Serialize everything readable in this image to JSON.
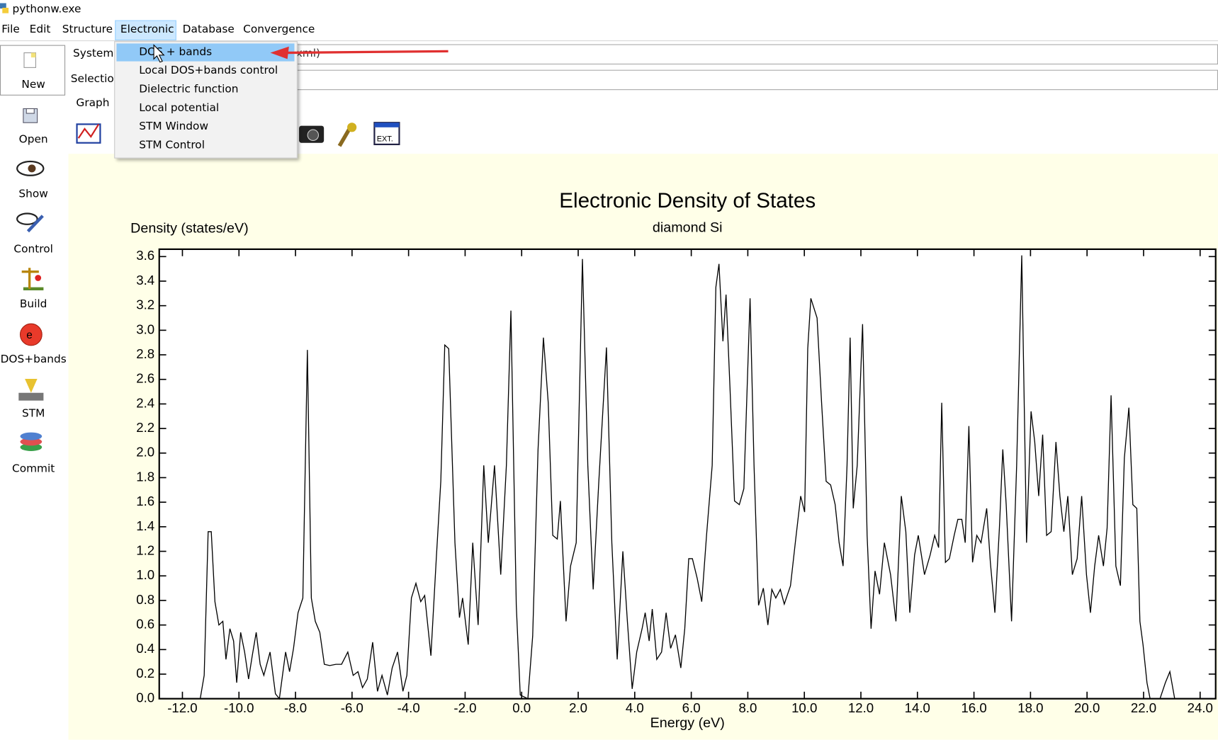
{
  "window": {
    "title": "pythonw.exe"
  },
  "menu": [
    "File",
    "Edit",
    "Structure",
    "Electronic",
    "Database",
    "Convergence"
  ],
  "dropdown": [
    "DOS + bands",
    "Local DOS+bands control",
    "Dielectric function",
    "Local potential",
    "STM Window",
    "STM Control"
  ],
  "sidebar": [
    "New",
    "Open",
    "Show",
    "Control",
    "Build",
    "DOS+bands",
    "STM",
    "Commit"
  ],
  "form": {
    "system_label": "System:",
    "system_value": "xml)",
    "selection_label": "Selection",
    "tab": "Graph"
  },
  "chart_data": {
    "type": "line",
    "title": "Electronic Density of States",
    "subtitle": "diamond Si",
    "y_label": "Density (states/eV)",
    "x_label": "Energy (eV)",
    "color": "#000000",
    "xlim": [
      -12.82,
      24.55
    ],
    "ylim": [
      0,
      3.66
    ],
    "xticks": [
      {
        "value": -12,
        "label": "-12.0"
      },
      {
        "value": -10,
        "label": "-10.0"
      },
      {
        "value": -8,
        "label": "-8.0"
      },
      {
        "value": -6,
        "label": "-6.0"
      },
      {
        "value": -4,
        "label": "-4.0"
      },
      {
        "value": -2,
        "label": "-2.0"
      },
      {
        "value": 0,
        "label": "0.0"
      },
      {
        "value": 2,
        "label": "2.0"
      },
      {
        "value": 4,
        "label": "4.0"
      },
      {
        "value": 6,
        "label": "6.0"
      },
      {
        "value": 8,
        "label": "8.0"
      },
      {
        "value": 10,
        "label": "10.0"
      },
      {
        "value": 12,
        "label": "12.0"
      },
      {
        "value": 14,
        "label": "14.0"
      },
      {
        "value": 16,
        "label": "16.0"
      },
      {
        "value": 18,
        "label": "18.0"
      },
      {
        "value": 20,
        "label": "20.0"
      },
      {
        "value": 22,
        "label": "22.0"
      },
      {
        "value": 24,
        "label": "24.0"
      }
    ],
    "yticks": [
      {
        "value": 0,
        "label": "0.0"
      },
      0.2,
      0.4,
      0.6,
      0.8,
      {
        "value": 1,
        "label": "1.0"
      },
      1.2,
      1.4,
      1.6,
      1.8,
      {
        "value": 2,
        "label": "2.0"
      },
      2.2,
      2.4,
      2.6,
      2.8,
      {
        "value": 3,
        "label": "3.0"
      },
      3.2,
      3.4,
      3.6
    ],
    "x": [
      -11.37,
      -11.23,
      -11.09,
      -10.98,
      -10.85,
      -10.71,
      -10.57,
      -10.46,
      -10.32,
      -10.19,
      -10.08,
      -9.94,
      -9.8,
      -9.66,
      -9.53,
      -9.39,
      -9.25,
      -9.12,
      -8.9,
      -8.71,
      -8.57,
      -8.35,
      -8.21,
      -8.07,
      -7.91,
      -7.74,
      -7.58,
      -7.44,
      -7.3,
      -7.14,
      -6.98,
      -6.79,
      -6.57,
      -6.37,
      -6.15,
      -5.96,
      -5.79,
      -5.63,
      -5.46,
      -5.27,
      -5.1,
      -4.94,
      -4.75,
      -4.58,
      -4.39,
      -4.2,
      -4.06,
      -3.9,
      -3.74,
      -3.57,
      -3.43,
      -3.21,
      -3.02,
      -2.86,
      -2.72,
      -2.58,
      -2.36,
      -2.2,
      -2.09,
      -1.89,
      -1.73,
      -1.54,
      -1.34,
      -1.18,
      -0.96,
      -0.74,
      -0.54,
      -0.38,
      -0.19,
      -0.05,
      0.22,
      0.39,
      0.58,
      0.77,
      0.94,
      1.1,
      1.26,
      1.37,
      1.57,
      1.73,
      1.93,
      2.15,
      2.34,
      2.53,
      2.73,
      3.0,
      3.19,
      3.38,
      3.58,
      3.74,
      3.91,
      4.07,
      4.26,
      4.37,
      4.51,
      4.62,
      4.78,
      4.95,
      5.11,
      5.27,
      5.44,
      5.63,
      5.77,
      5.91,
      6.04,
      6.21,
      6.37,
      6.54,
      6.74,
      6.87,
      6.98,
      7.12,
      7.23,
      7.37,
      7.53,
      7.7,
      7.86,
      8.08,
      8.22,
      8.38,
      8.55,
      8.71,
      8.85,
      8.99,
      9.15,
      9.29,
      9.51,
      9.68,
      9.87,
      10.01,
      10.12,
      10.23,
      10.45,
      10.61,
      10.77,
      10.93,
      11.09,
      11.23,
      11.37,
      11.51,
      11.62,
      11.73,
      11.87,
      12.06,
      12.22,
      12.36,
      12.5,
      12.66,
      12.83,
      13.05,
      13.24,
      13.43,
      13.59,
      13.73,
      13.9,
      14.03,
      14.25,
      14.45,
      14.61,
      14.75,
      14.86,
      14.99,
      15.13,
      15.3,
      15.43,
      15.57,
      15.69,
      15.82,
      15.95,
      16.1,
      16.25,
      16.45,
      16.58,
      16.74,
      16.9,
      17.02,
      17.14,
      17.33,
      17.51,
      17.69,
      17.86,
      18.02,
      18.15,
      18.29,
      18.43,
      18.57,
      18.73,
      18.9,
      19.04,
      19.18,
      19.32,
      19.48,
      19.65,
      19.81,
      19.98,
      20.12,
      20.27,
      20.41,
      20.58,
      20.71,
      20.85,
      21.02,
      21.18,
      21.32,
      21.48,
      21.62,
      21.76,
      21.87,
      21.98,
      22.12,
      22.23,
      22.58,
      22.77,
      22.93,
      23.1
    ],
    "values": [
      0,
      0.19,
      1.36,
      1.36,
      0.79,
      0.6,
      0.63,
      0.32,
      0.57,
      0.47,
      0.13,
      0.54,
      0.38,
      0.16,
      0.35,
      0.54,
      0.28,
      0.19,
      0.38,
      0.04,
      0,
      0.38,
      0.22,
      0.41,
      0.7,
      0.82,
      2.84,
      0.82,
      0.63,
      0.54,
      0.28,
      0.27,
      0.28,
      0.28,
      0.38,
      0.19,
      0.22,
      0.09,
      0.16,
      0.46,
      0.06,
      0.19,
      0.03,
      0.25,
      0.38,
      0.06,
      0.19,
      0.82,
      0.94,
      0.79,
      0.84,
      0.35,
      1.14,
      1.77,
      2.88,
      2.85,
      1.27,
      0.66,
      0.82,
      0.44,
      1.27,
      0.6,
      1.9,
      1.27,
      1.9,
      1.01,
      1.9,
      3.16,
      0.76,
      0.03,
      0,
      0.51,
      2.03,
      2.94,
      2.41,
      1.33,
      1.3,
      1.61,
      0.63,
      1.08,
      1.27,
      3.58,
      1.9,
      0.89,
      1.77,
      2.86,
      1.27,
      0.32,
      1.2,
      0.63,
      0.08,
      0.38,
      0.57,
      0.7,
      0.47,
      0.73,
      0.32,
      0.38,
      0.7,
      0.41,
      0.52,
      0.25,
      0.57,
      1.14,
      1.14,
      0.98,
      0.79,
      1.33,
      1.9,
      3.35,
      3.54,
      2.91,
      3.29,
      2.53,
      1.61,
      1.58,
      1.71,
      3.26,
      1.9,
      0.76,
      0.9,
      0.6,
      0.89,
      0.82,
      0.89,
      0.77,
      0.92,
      1.27,
      1.65,
      1.52,
      2.85,
      3.26,
      3.1,
      2.41,
      1.77,
      1.74,
      1.58,
      1.27,
      1.08,
      1.9,
      2.94,
      1.55,
      1.9,
      3.05,
      1.33,
      0.57,
      1.04,
      0.85,
      1.27,
      1.01,
      0.63,
      1.65,
      1.36,
      0.7,
      1.17,
      1.33,
      1.01,
      1.17,
      1.33,
      1.23,
      2.41,
      1.11,
      1.14,
      1.33,
      1.46,
      1.46,
      1.27,
      2.22,
      1.11,
      1.33,
      1.27,
      1.55,
      1.11,
      0.7,
      1.39,
      2.03,
      1.58,
      0.63,
      1.9,
      3.61,
      1.27,
      2.34,
      2.09,
      1.65,
      2.15,
      1.33,
      1.36,
      2.09,
      1.65,
      1.36,
      1.65,
      1.01,
      1.14,
      1.65,
      1.01,
      0.7,
      1.08,
      1.33,
      1.08,
      1.39,
      2.47,
      1.08,
      0.92,
      1.96,
      2.37,
      1.58,
      1.55,
      0.63,
      0.44,
      0.13,
      0,
      0,
      0.13,
      0.22,
      0
    ]
  }
}
